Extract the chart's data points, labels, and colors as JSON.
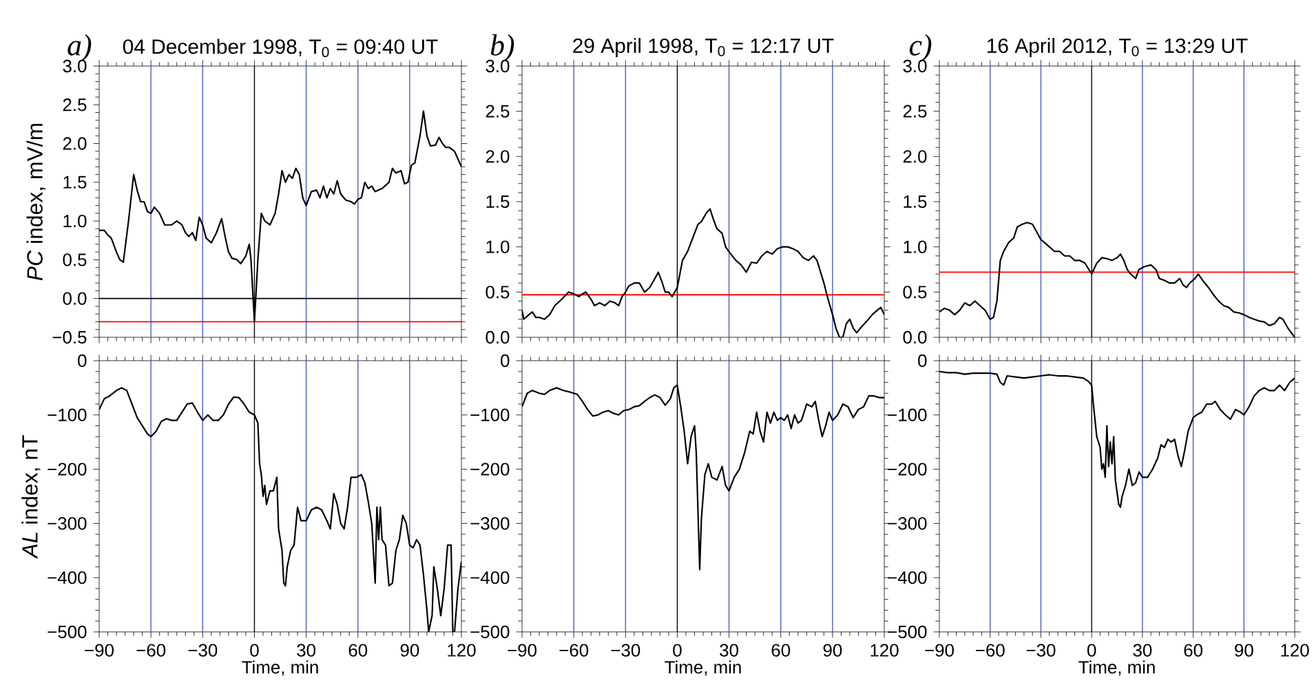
{
  "chart_data": [
    {
      "type": "line",
      "title": "04 December 1998, T$_{0}$ = 09:40 UT",
      "ylabel": "*PC* index, mV/m",
      "annotations": [
        "a)"
      ],
      "color": "#000000",
      "xlim": [
        -90,
        120
      ],
      "ylim": [
        -0.5,
        3.0
      ],
      "xticks": [
        -90,
        -60,
        -30,
        0,
        30,
        60,
        90,
        120
      ],
      "yticks": [
        {
          "value": -0.5,
          "label": "−0.5"
        },
        {
          "value": 0,
          "label": "0.0"
        },
        {
          "value": 0.5,
          "label": "0.5"
        },
        {
          "value": 1,
          "label": "1.0"
        },
        {
          "value": 1.5,
          "label": "1.5"
        },
        {
          "value": 2,
          "label": "2.0"
        },
        {
          "value": 2.5,
          "label": "2.5"
        },
        {
          "value": 3,
          "label": "3.0"
        }
      ],
      "tick_labels": "y",
      "ref_lines": [
        {
          "axis": "x",
          "value": -60,
          "color": "#4a5ac8"
        },
        {
          "axis": "x",
          "value": -30,
          "color": "#4a5ac8"
        },
        {
          "axis": "x",
          "value": 0,
          "color": "#000000"
        },
        {
          "axis": "x",
          "value": 30,
          "color": "#4a5ac8"
        },
        {
          "axis": "x",
          "value": 60,
          "color": "#4a5ac8"
        },
        {
          "axis": "x",
          "value": 90,
          "color": "#4a5ac8"
        },
        {
          "axis": "y",
          "value": 0,
          "color": "#000000"
        },
        {
          "axis": "y",
          "value": -0.3,
          "color": "#ff0000"
        }
      ],
      "x": [
        -90,
        -87,
        -85,
        -83,
        -80,
        -78,
        -76,
        -73,
        -70,
        -68,
        -66,
        -64,
        -62,
        -60,
        -58,
        -55,
        -52,
        -48,
        -45,
        -42,
        -40,
        -38,
        -36,
        -34,
        -32,
        -30,
        -28,
        -25,
        -22,
        -19,
        -17,
        -15,
        -13,
        -10,
        -8,
        -5,
        -3,
        -2,
        0,
        2,
        4,
        6,
        9,
        12,
        14,
        16,
        18,
        20,
        22,
        24,
        26,
        28,
        30,
        33,
        36,
        38,
        40,
        42,
        44,
        46,
        48,
        50,
        53,
        56,
        58,
        60,
        62,
        64,
        66,
        68,
        70,
        74,
        78,
        80,
        82,
        85,
        87,
        89,
        91,
        93,
        96,
        98,
        100,
        102,
        105,
        107,
        109,
        111,
        113,
        116,
        120
      ],
      "values": [
        0.88,
        0.88,
        0.82,
        0.78,
        0.6,
        0.5,
        0.47,
        1.0,
        1.6,
        1.4,
        1.25,
        1.25,
        1.12,
        1.1,
        1.18,
        1.1,
        0.95,
        0.95,
        1.0,
        0.95,
        0.85,
        0.8,
        0.85,
        0.75,
        1.05,
        0.95,
        0.78,
        0.72,
        0.85,
        1.03,
        0.8,
        0.6,
        0.52,
        0.5,
        0.45,
        0.55,
        0.7,
        0.5,
        -0.3,
        0.5,
        1.1,
        1.0,
        0.95,
        1.1,
        1.35,
        1.65,
        1.5,
        1.6,
        1.55,
        1.68,
        1.6,
        1.3,
        1.2,
        1.38,
        1.4,
        1.3,
        1.45,
        1.3,
        1.42,
        1.35,
        1.52,
        1.35,
        1.27,
        1.25,
        1.22,
        1.28,
        1.3,
        1.5,
        1.42,
        1.45,
        1.38,
        1.42,
        1.5,
        1.68,
        1.62,
        1.65,
        1.48,
        1.5,
        1.72,
        1.75,
        2.1,
        2.42,
        2.1,
        1.97,
        1.98,
        2.08,
        2.0,
        1.95,
        1.95,
        1.9,
        1.7
      ]
    },
    {
      "type": "line",
      "ylabel": "*AL* index, nT",
      "xlabel": "Time, min",
      "color": "#000000",
      "xlim": [
        -90,
        120
      ],
      "ylim": [
        -500,
        0
      ],
      "xticks": [
        {
          "value": -90,
          "label": "−90"
        },
        {
          "value": -60,
          "label": "−60"
        },
        {
          "value": -30,
          "label": "−30"
        },
        0,
        30,
        60,
        90,
        120
      ],
      "yticks": [
        {
          "value": -500,
          "label": "−500"
        },
        {
          "value": -400,
          "label": "−400"
        },
        {
          "value": -300,
          "label": "−300"
        },
        {
          "value": -200,
          "label": "−200"
        },
        {
          "value": -100,
          "label": "−100"
        },
        0
      ],
      "ref_lines": [
        {
          "axis": "x",
          "value": -60,
          "color": "#4a5ac8"
        },
        {
          "axis": "x",
          "value": -30,
          "color": "#4a5ac8"
        },
        {
          "axis": "x",
          "value": 0,
          "color": "#000000"
        },
        {
          "axis": "x",
          "value": 30,
          "color": "#4a5ac8"
        },
        {
          "axis": "x",
          "value": 60,
          "color": "#4a5ac8"
        },
        {
          "axis": "x",
          "value": 90,
          "color": "#4a5ac8"
        }
      ],
      "x": [
        -90,
        -87,
        -84,
        -80,
        -77,
        -74,
        -71,
        -68,
        -65,
        -62,
        -60,
        -57,
        -54,
        -51,
        -48,
        -45,
        -42,
        -39,
        -36,
        -33,
        -30,
        -27,
        -24,
        -21,
        -18,
        -15,
        -12,
        -9,
        -6,
        -3,
        0,
        2,
        3,
        4,
        5,
        6,
        7,
        9,
        11,
        13,
        14,
        16,
        17,
        18,
        19,
        21,
        23,
        25,
        27,
        30,
        33,
        36,
        39,
        42,
        44,
        46,
        48,
        50,
        52,
        54,
        56,
        59,
        62,
        64,
        66,
        68,
        70,
        71,
        72,
        73,
        74,
        76,
        78,
        80,
        82,
        84,
        86,
        88,
        90,
        92,
        94,
        96,
        98,
        100,
        101,
        103,
        104,
        106,
        108,
        110,
        112,
        114,
        115,
        116,
        118,
        120
      ],
      "values": [
        -90,
        -70,
        -65,
        -55,
        -50,
        -55,
        -80,
        -105,
        -120,
        -135,
        -140,
        -130,
        -112,
        -107,
        -110,
        -110,
        -95,
        -80,
        -78,
        -95,
        -110,
        -100,
        -110,
        -110,
        -100,
        -80,
        -67,
        -68,
        -80,
        -95,
        -100,
        -115,
        -190,
        -210,
        -250,
        -230,
        -265,
        -240,
        -240,
        -215,
        -310,
        -350,
        -410,
        -415,
        -380,
        -350,
        -340,
        -270,
        -295,
        -295,
        -275,
        -270,
        -275,
        -295,
        -310,
        -245,
        -265,
        -300,
        -310,
        -270,
        -215,
        -215,
        -210,
        -225,
        -260,
        -300,
        -410,
        -270,
        -330,
        -270,
        -330,
        -340,
        -415,
        -410,
        -350,
        -330,
        -285,
        -300,
        -340,
        -345,
        -330,
        -340,
        -395,
        -460,
        -500,
        -470,
        -380,
        -420,
        -470,
        -420,
        -340,
        -340,
        -500,
        -500,
        -420,
        -370
      ]
    },
    {
      "type": "line",
      "title": "29 April 1998, T$_{0}$ = 12:17 UT",
      "annotations": [
        "b)"
      ],
      "color": "#000000",
      "xlim": [
        -90,
        120
      ],
      "ylim": [
        0,
        3.0
      ],
      "xticks": [
        -90,
        -60,
        -30,
        0,
        30,
        60,
        90,
        120
      ],
      "yticks": [
        {
          "value": 0,
          "label": "0.0"
        },
        {
          "value": 0.5,
          "label": "0.5"
        },
        {
          "value": 1,
          "label": "1.0"
        },
        {
          "value": 1.5,
          "label": "1.5"
        },
        {
          "value": 2,
          "label": "2.0"
        },
        {
          "value": 2.5,
          "label": "2.5"
        },
        {
          "value": 3,
          "label": "3.0"
        }
      ],
      "tick_labels": "y",
      "ref_lines": [
        {
          "axis": "x",
          "value": -60,
          "color": "#4a5ac8"
        },
        {
          "axis": "x",
          "value": -30,
          "color": "#4a5ac8"
        },
        {
          "axis": "x",
          "value": 0,
          "color": "#000000"
        },
        {
          "axis": "x",
          "value": 30,
          "color": "#4a5ac8"
        },
        {
          "axis": "x",
          "value": 60,
          "color": "#4a5ac8"
        },
        {
          "axis": "x",
          "value": 90,
          "color": "#4a5ac8"
        },
        {
          "axis": "y",
          "value": 0.47,
          "color": "#ff0000"
        }
      ],
      "x": [
        -90,
        -89,
        -86,
        -84,
        -82,
        -80,
        -77,
        -74,
        -71,
        -67,
        -63,
        -60,
        -57,
        -55,
        -53,
        -50,
        -48,
        -45,
        -42,
        -39,
        -36,
        -34,
        -32,
        -30,
        -28,
        -25,
        -22,
        -19,
        -16,
        -13,
        -11,
        -9,
        -7,
        -5,
        -3,
        0,
        3,
        6,
        9,
        12,
        14,
        17,
        19,
        21,
        23,
        26,
        28,
        31,
        34,
        37,
        40,
        43,
        46,
        49,
        52,
        55,
        58,
        61,
        64,
        67,
        70,
        73,
        76,
        79,
        81,
        85,
        87,
        90,
        92,
        94,
        96,
        98,
        100,
        102,
        104,
        107,
        110,
        113,
        116,
        118,
        120
      ],
      "values": [
        0.3,
        0.2,
        0.25,
        0.28,
        0.22,
        0.22,
        0.2,
        0.25,
        0.35,
        0.42,
        0.5,
        0.48,
        0.45,
        0.48,
        0.5,
        0.42,
        0.35,
        0.38,
        0.35,
        0.4,
        0.38,
        0.35,
        0.45,
        0.5,
        0.57,
        0.6,
        0.6,
        0.5,
        0.55,
        0.65,
        0.72,
        0.62,
        0.5,
        0.5,
        0.45,
        0.55,
        0.85,
        0.95,
        1.1,
        1.25,
        1.28,
        1.38,
        1.42,
        1.3,
        1.2,
        1.15,
        1.0,
        0.92,
        0.85,
        0.8,
        0.72,
        0.83,
        0.82,
        0.9,
        0.95,
        0.92,
        0.98,
        1.0,
        1.0,
        0.98,
        0.95,
        0.88,
        0.85,
        0.9,
        0.85,
        0.6,
        0.45,
        0.25,
        0.1,
        0.0,
        0.0,
        0.15,
        0.2,
        0.1,
        0.05,
        0.12,
        0.18,
        0.25,
        0.3,
        0.33,
        0.25
      ]
    },
    {
      "type": "line",
      "xlabel": "Time, min",
      "color": "#000000",
      "xlim": [
        -90,
        120
      ],
      "ylim": [
        -500,
        0
      ],
      "xticks": [
        {
          "value": -90,
          "label": "−90"
        },
        {
          "value": -60,
          "label": "−60"
        },
        {
          "value": -30,
          "label": "−30"
        },
        0,
        30,
        60,
        90,
        120
      ],
      "yticks": [
        {
          "value": -500,
          "label": "−500"
        },
        {
          "value": -400,
          "label": "−400"
        },
        {
          "value": -300,
          "label": "−300"
        },
        {
          "value": -200,
          "label": "−200"
        },
        {
          "value": -100,
          "label": "−100"
        },
        0
      ],
      "ref_lines": [
        {
          "axis": "x",
          "value": -60,
          "color": "#4a5ac8"
        },
        {
          "axis": "x",
          "value": -30,
          "color": "#4a5ac8"
        },
        {
          "axis": "x",
          "value": 0,
          "color": "#000000"
        },
        {
          "axis": "x",
          "value": 30,
          "color": "#4a5ac8"
        },
        {
          "axis": "x",
          "value": 60,
          "color": "#4a5ac8"
        },
        {
          "axis": "x",
          "value": 90,
          "color": "#4a5ac8"
        }
      ],
      "x": [
        -90,
        -87,
        -84,
        -80,
        -77,
        -74,
        -70,
        -66,
        -62,
        -58,
        -55,
        -52,
        -49,
        -46,
        -43,
        -40,
        -37,
        -34,
        -31,
        -28,
        -25,
        -22,
        -19,
        -16,
        -13,
        -10,
        -7,
        -4,
        -2,
        0,
        2,
        4,
        6,
        8,
        10,
        11,
        13,
        14,
        16,
        18,
        20,
        23,
        26,
        28,
        30,
        33,
        36,
        39,
        42,
        44,
        46,
        48,
        50,
        52,
        54,
        56,
        58,
        60,
        62,
        64,
        66,
        68,
        70,
        72,
        75,
        78,
        80,
        82,
        84,
        86,
        88,
        90,
        93,
        96,
        99,
        102,
        105,
        108,
        111,
        114,
        117,
        120
      ],
      "values": [
        -85,
        -60,
        -55,
        -60,
        -62,
        -55,
        -50,
        -55,
        -58,
        -62,
        -75,
        -90,
        -102,
        -100,
        -95,
        -92,
        -97,
        -100,
        -92,
        -90,
        -85,
        -83,
        -75,
        -68,
        -63,
        -68,
        -82,
        -70,
        -50,
        -45,
        -85,
        -130,
        -190,
        -140,
        -120,
        -170,
        -385,
        -290,
        -210,
        -190,
        -215,
        -220,
        -195,
        -230,
        -240,
        -215,
        -200,
        -170,
        -130,
        -135,
        -95,
        -130,
        -150,
        -95,
        -115,
        -95,
        -110,
        -105,
        -110,
        -100,
        -125,
        -100,
        -115,
        -110,
        -80,
        -85,
        -75,
        -110,
        -140,
        -120,
        -95,
        -110,
        -100,
        -80,
        -85,
        -105,
        -90,
        -85,
        -65,
        -65,
        -68,
        -68
      ]
    },
    {
      "type": "line",
      "title": "16 April 2012, T$_{0}$ = 13:29 UT",
      "annotations": [
        "c)"
      ],
      "color": "#000000",
      "xlim": [
        -90,
        120
      ],
      "ylim": [
        0,
        3.0
      ],
      "xticks": [
        -90,
        -60,
        -30,
        0,
        30,
        60,
        90,
        120
      ],
      "yticks": [
        {
          "value": 0,
          "label": "0.0"
        },
        {
          "value": 0.5,
          "label": "0.5"
        },
        {
          "value": 1,
          "label": "1.0"
        },
        {
          "value": 1.5,
          "label": "1.5"
        },
        {
          "value": 2,
          "label": "2.0"
        },
        {
          "value": 2.5,
          "label": "2.5"
        },
        {
          "value": 3,
          "label": "3.0"
        }
      ],
      "tick_labels": "y",
      "ref_lines": [
        {
          "axis": "x",
          "value": -60,
          "color": "#4a5ac8"
        },
        {
          "axis": "x",
          "value": -30,
          "color": "#4a5ac8"
        },
        {
          "axis": "x",
          "value": 0,
          "color": "#000000"
        },
        {
          "axis": "x",
          "value": 30,
          "color": "#4a5ac8"
        },
        {
          "axis": "x",
          "value": 60,
          "color": "#4a5ac8"
        },
        {
          "axis": "x",
          "value": 90,
          "color": "#4a5ac8"
        },
        {
          "axis": "y",
          "value": 0.72,
          "color": "#ff0000"
        }
      ],
      "x": [
        -90,
        -87,
        -84,
        -81,
        -78,
        -75,
        -72,
        -69,
        -66,
        -63,
        -60,
        -58,
        -56,
        -54,
        -52,
        -49,
        -46,
        -44,
        -41,
        -38,
        -35,
        -32,
        -30,
        -28,
        -25,
        -22,
        -19,
        -16,
        -13,
        -10,
        -7,
        -4,
        0,
        3,
        6,
        9,
        12,
        15,
        17,
        19,
        21,
        23,
        26,
        28,
        31,
        35,
        38,
        40,
        43,
        46,
        49,
        52,
        54,
        56,
        58,
        61,
        63,
        66,
        69,
        72,
        75,
        78,
        81,
        84,
        87,
        90,
        93,
        96,
        99,
        102,
        105,
        108,
        111,
        113,
        116,
        118,
        120
      ],
      "values": [
        0.28,
        0.32,
        0.3,
        0.25,
        0.3,
        0.38,
        0.35,
        0.4,
        0.35,
        0.3,
        0.2,
        0.22,
        0.4,
        0.85,
        0.95,
        1.05,
        1.1,
        1.22,
        1.25,
        1.27,
        1.25,
        1.15,
        1.08,
        1.05,
        1.0,
        0.95,
        0.95,
        0.9,
        0.9,
        0.85,
        0.85,
        0.82,
        0.7,
        0.82,
        0.88,
        0.87,
        0.85,
        0.88,
        0.92,
        0.85,
        0.75,
        0.7,
        0.65,
        0.75,
        0.78,
        0.8,
        0.75,
        0.65,
        0.63,
        0.6,
        0.6,
        0.65,
        0.58,
        0.55,
        0.6,
        0.65,
        0.7,
        0.62,
        0.55,
        0.47,
        0.4,
        0.35,
        0.33,
        0.28,
        0.27,
        0.25,
        0.22,
        0.2,
        0.18,
        0.17,
        0.13,
        0.15,
        0.22,
        0.2,
        0.1,
        0.05,
        0.0
      ]
    },
    {
      "type": "line",
      "xlabel": "Time, min",
      "color": "#000000",
      "xlim": [
        -90,
        120
      ],
      "ylim": [
        -500,
        0
      ],
      "xticks": [
        {
          "value": -90,
          "label": "−90"
        },
        {
          "value": -60,
          "label": "−60"
        },
        {
          "value": -30,
          "label": "−30"
        },
        0,
        30,
        60,
        90,
        120
      ],
      "yticks": [
        {
          "value": -500,
          "label": "−500"
        },
        {
          "value": -400,
          "label": "−400"
        },
        {
          "value": -300,
          "label": "−300"
        },
        {
          "value": -200,
          "label": "−200"
        },
        {
          "value": -100,
          "label": "−100"
        },
        0
      ],
      "ref_lines": [
        {
          "axis": "x",
          "value": -60,
          "color": "#4a5ac8"
        },
        {
          "axis": "x",
          "value": -30,
          "color": "#4a5ac8"
        },
        {
          "axis": "x",
          "value": 0,
          "color": "#000000"
        },
        {
          "axis": "x",
          "value": 30,
          "color": "#4a5ac8"
        },
        {
          "axis": "x",
          "value": 60,
          "color": "#4a5ac8"
        },
        {
          "axis": "x",
          "value": 90,
          "color": "#4a5ac8"
        }
      ],
      "x": [
        -90,
        -85,
        -80,
        -75,
        -70,
        -65,
        -60,
        -56,
        -54,
        -52,
        -50,
        -45,
        -40,
        -35,
        -30,
        -25,
        -20,
        -15,
        -10,
        -5,
        -2,
        0,
        1,
        3,
        5,
        6,
        7,
        8,
        9,
        10,
        11,
        12,
        13,
        14,
        16,
        17,
        18,
        20,
        22,
        24,
        26,
        28,
        30,
        33,
        36,
        39,
        41,
        43,
        45,
        47,
        49,
        51,
        53,
        55,
        57,
        60,
        62,
        65,
        68,
        71,
        73,
        76,
        79,
        82,
        85,
        88,
        90,
        93,
        96,
        99,
        102,
        105,
        108,
        111,
        114,
        117,
        120
      ],
      "values": [
        -20,
        -22,
        -22,
        -25,
        -23,
        -23,
        -23,
        -25,
        -40,
        -45,
        -28,
        -30,
        -32,
        -30,
        -28,
        -26,
        -28,
        -28,
        -30,
        -32,
        -38,
        -45,
        -80,
        -140,
        -160,
        -200,
        -190,
        -215,
        -120,
        -195,
        -150,
        -190,
        -140,
        -220,
        -265,
        -270,
        -250,
        -230,
        -200,
        -230,
        -225,
        -205,
        -215,
        -215,
        -200,
        -180,
        -155,
        -160,
        -145,
        -150,
        -145,
        -175,
        -195,
        -165,
        -130,
        -105,
        -100,
        -95,
        -80,
        -80,
        -75,
        -90,
        -100,
        -108,
        -90,
        -95,
        -100,
        -85,
        -65,
        -55,
        -50,
        -55,
        -55,
        -45,
        -55,
        -40,
        -32
      ]
    }
  ]
}
